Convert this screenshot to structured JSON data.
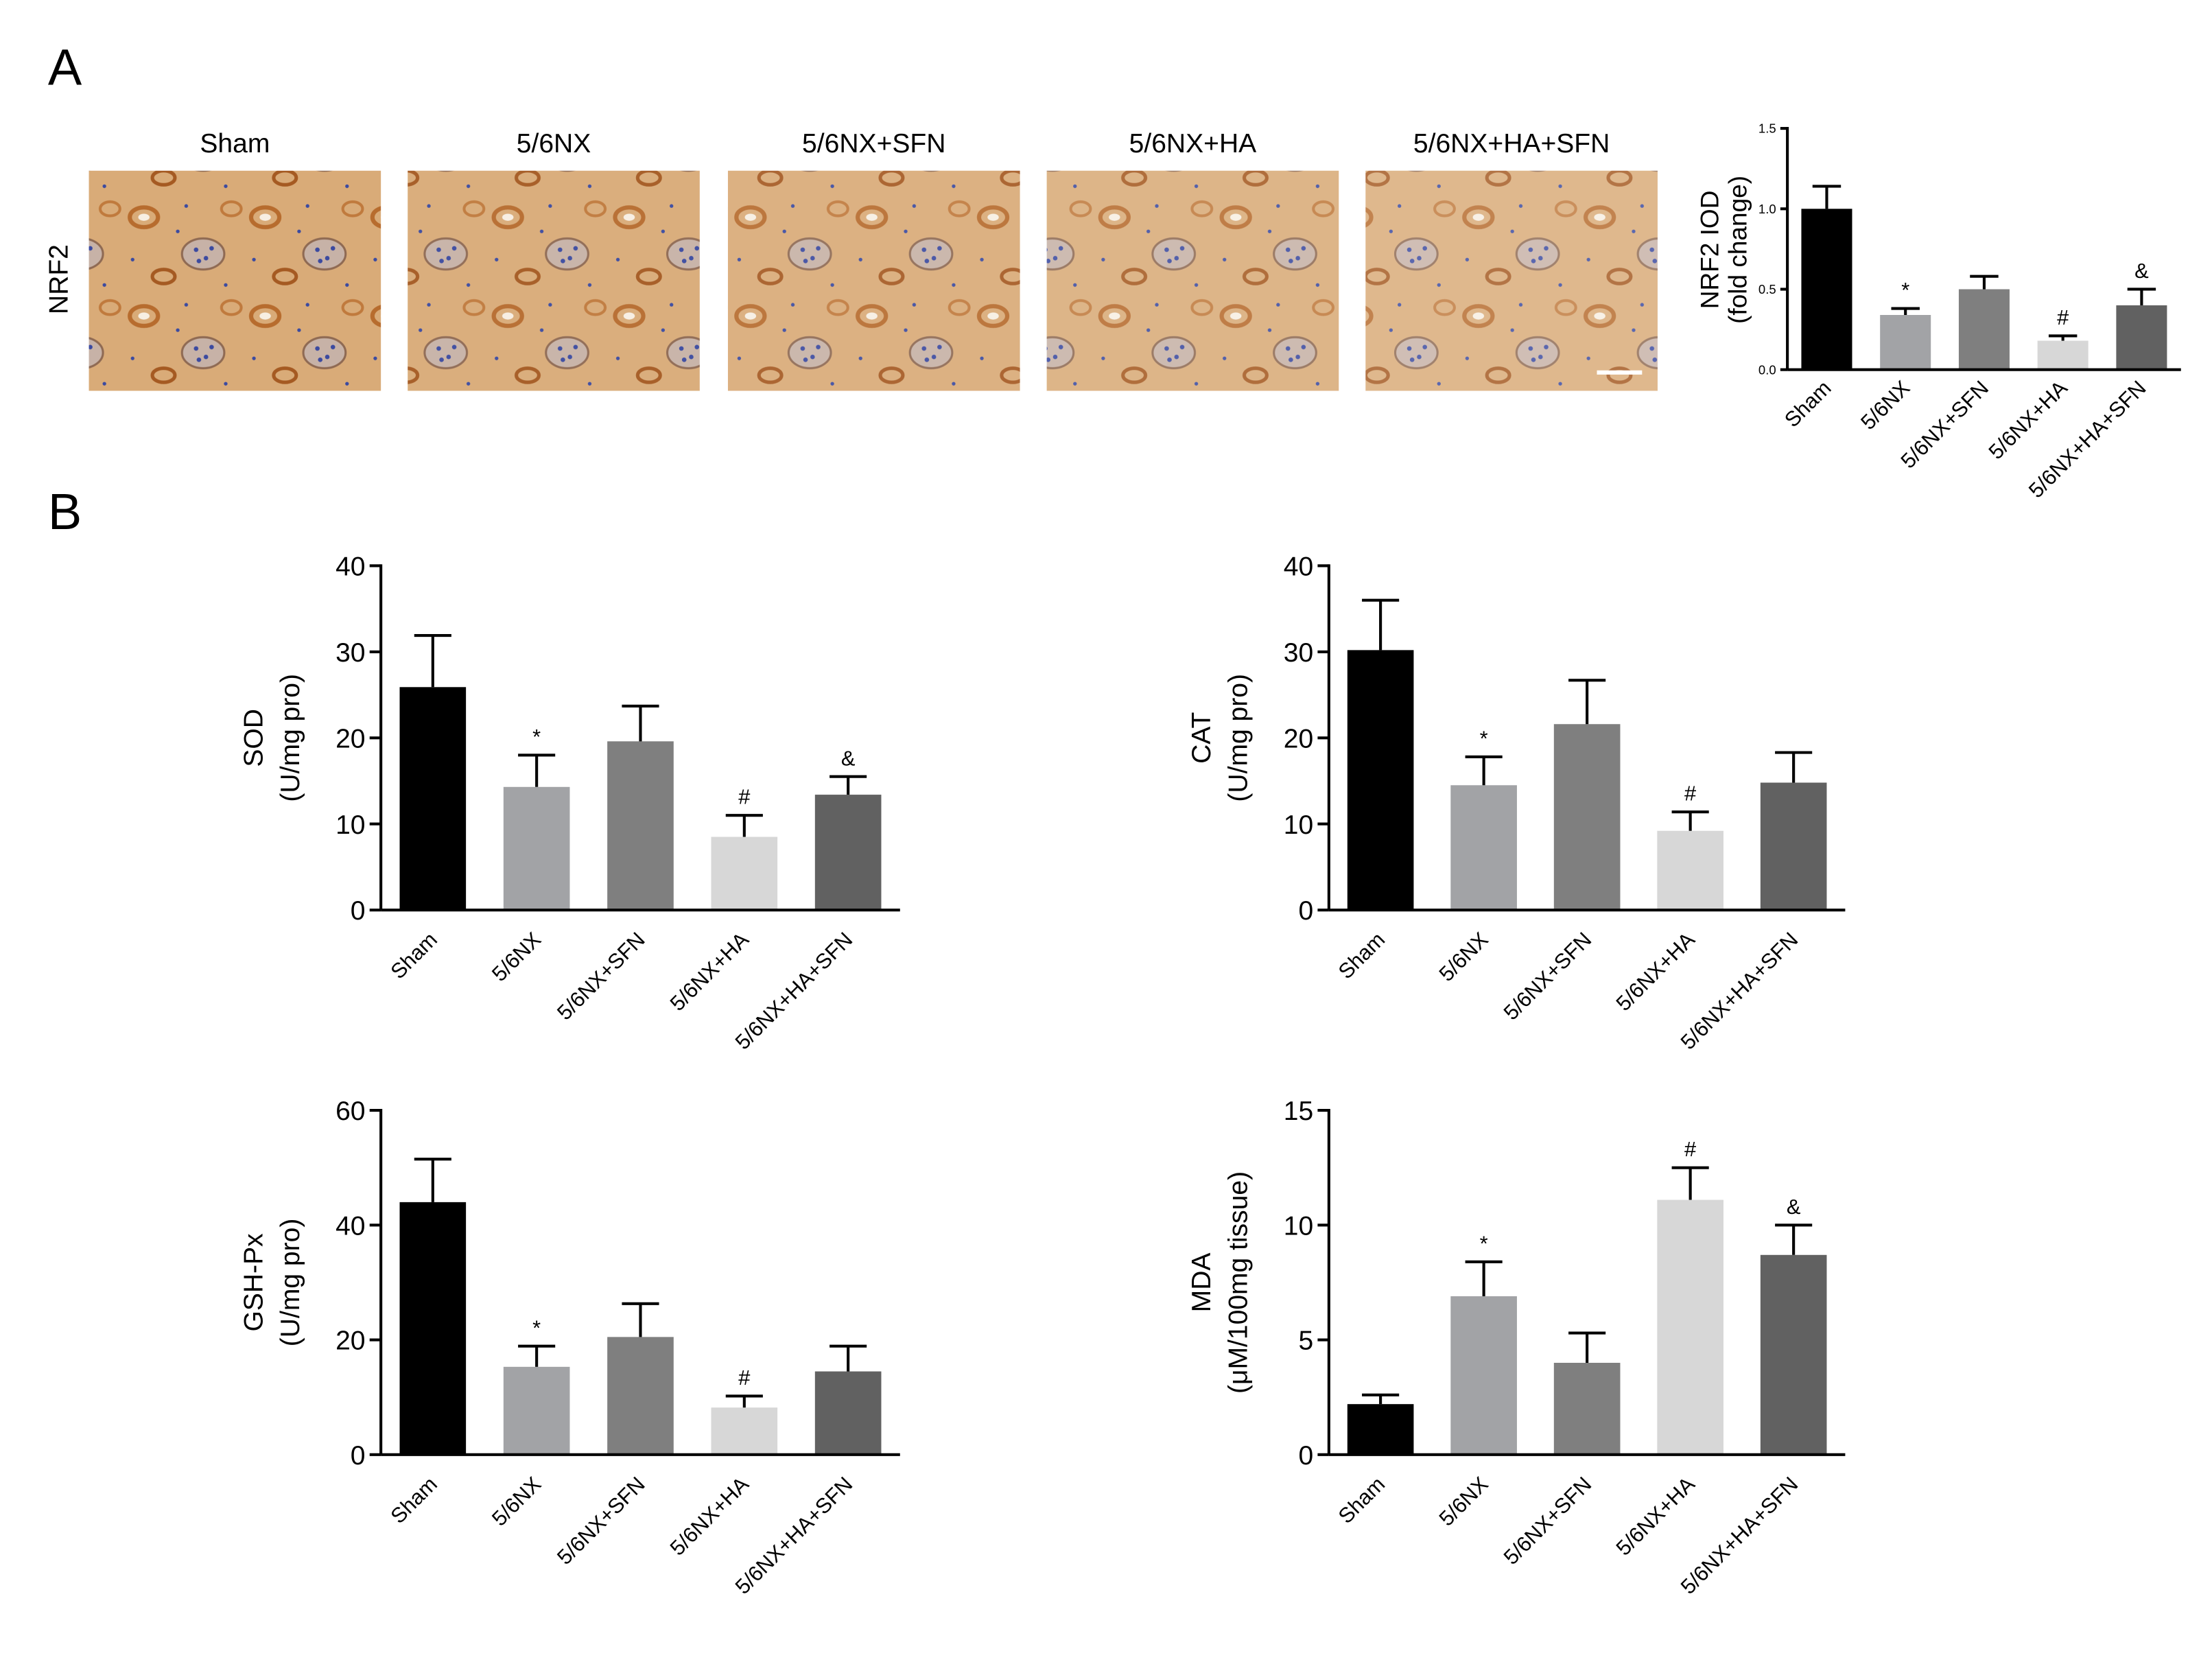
{
  "panel_labels": {
    "a": "A",
    "b": "B"
  },
  "micrographs": {
    "row_label": "NRF2",
    "groups": [
      "Sham",
      "5/6NX",
      "5/6NX+SFN",
      "5/6NX+HA",
      "5/6NX+HA+SFN"
    ],
    "stain_colors": {
      "background": "#d9ab78",
      "tubule": "#b76c2e",
      "nuclei": "#3b4aa0",
      "lumen": "#f7efe3"
    },
    "scale_bar": "present (white, last image)"
  },
  "colors": {
    "Sham": "#000000",
    "5/6NX": "#a2a3a6",
    "5/6NX+SFN": "#7f7f7f",
    "5/6NX+HA": "#d7d7d7",
    "5/6NX+HA+SFN": "#616161"
  },
  "chart_data": [
    {
      "id": "nrf2",
      "type": "bar",
      "categories": [
        "Sham",
        "5/6NX",
        "5/6NX+SFN",
        "5/6NX+HA",
        "5/6NX+HA+SFN"
      ],
      "values": [
        1.0,
        0.34,
        0.5,
        0.18,
        0.4
      ],
      "errors": [
        0.14,
        0.04,
        0.08,
        0.03,
        0.1
      ],
      "significance": [
        "",
        "*",
        "",
        "#",
        "&"
      ],
      "ylabel_lines": [
        "NRF2 IOD",
        "(fold change)"
      ],
      "ylim": [
        0,
        1.5
      ],
      "yticks": [
        0.0,
        0.5,
        1.0,
        1.5
      ],
      "ytick_labels": [
        "0.0",
        "0.5",
        "1.0",
        "1.5"
      ],
      "title": "",
      "xlabel": "",
      "grid": false
    },
    {
      "id": "sod",
      "type": "bar",
      "categories": [
        "Sham",
        "5/6NX",
        "5/6NX+SFN",
        "5/6NX+HA",
        "5/6NX+HA+SFN"
      ],
      "values": [
        25.9,
        14.3,
        19.6,
        8.5,
        13.4
      ],
      "errors": [
        6.0,
        3.7,
        4.1,
        2.5,
        2.1
      ],
      "significance": [
        "",
        "*",
        "",
        "#",
        "&"
      ],
      "ylabel_lines": [
        "SOD",
        "(U/mg pro)"
      ],
      "ylim": [
        0,
        40
      ],
      "yticks": [
        0,
        10,
        20,
        30,
        40
      ],
      "ytick_labels": [
        "0",
        "10",
        "20",
        "30",
        "40"
      ],
      "title": "",
      "xlabel": "",
      "grid": false
    },
    {
      "id": "cat",
      "type": "bar",
      "categories": [
        "Sham",
        "5/6NX",
        "5/6NX+SFN",
        "5/6NX+HA",
        "5/6NX+HA+SFN"
      ],
      "values": [
        30.2,
        14.5,
        21.6,
        9.2,
        14.8
      ],
      "errors": [
        5.8,
        3.3,
        5.1,
        2.2,
        3.5
      ],
      "significance": [
        "",
        "*",
        "",
        "#",
        ""
      ],
      "ylabel_lines": [
        "CAT",
        "(U/mg pro)"
      ],
      "ylim": [
        0,
        40
      ],
      "yticks": [
        0,
        10,
        20,
        30,
        40
      ],
      "ytick_labels": [
        "0",
        "10",
        "20",
        "30",
        "40"
      ],
      "title": "",
      "xlabel": "",
      "grid": false
    },
    {
      "id": "gshpx",
      "type": "bar",
      "categories": [
        "Sham",
        "5/6NX",
        "5/6NX+SFN",
        "5/6NX+HA",
        "5/6NX+HA+SFN"
      ],
      "values": [
        44.0,
        15.3,
        20.5,
        8.2,
        14.5
      ],
      "errors": [
        7.5,
        3.6,
        5.8,
        2.0,
        4.4
      ],
      "significance": [
        "",
        "*",
        "",
        "#",
        ""
      ],
      "ylabel_lines": [
        "GSH-Px",
        "(U/mg pro)"
      ],
      "ylim": [
        0,
        60
      ],
      "yticks": [
        0,
        20,
        40,
        60
      ],
      "ytick_labels": [
        "0",
        "20",
        "40",
        "60"
      ],
      "title": "",
      "xlabel": "",
      "grid": false
    },
    {
      "id": "mda",
      "type": "bar",
      "categories": [
        "Sham",
        "5/6NX",
        "5/6NX+SFN",
        "5/6NX+HA",
        "5/6NX+HA+SFN"
      ],
      "values": [
        2.2,
        6.9,
        4.0,
        11.1,
        8.7
      ],
      "errors": [
        0.4,
        1.5,
        1.3,
        1.4,
        1.3
      ],
      "significance": [
        "",
        "*",
        "",
        "#",
        "&"
      ],
      "ylabel_lines": [
        "MDA",
        "(μM/100mg tissue)"
      ],
      "ylim": [
        0,
        15
      ],
      "yticks": [
        0,
        5,
        10,
        15
      ],
      "ytick_labels": [
        "0",
        "5",
        "10",
        "15"
      ],
      "title": "",
      "xlabel": "",
      "grid": false
    }
  ]
}
